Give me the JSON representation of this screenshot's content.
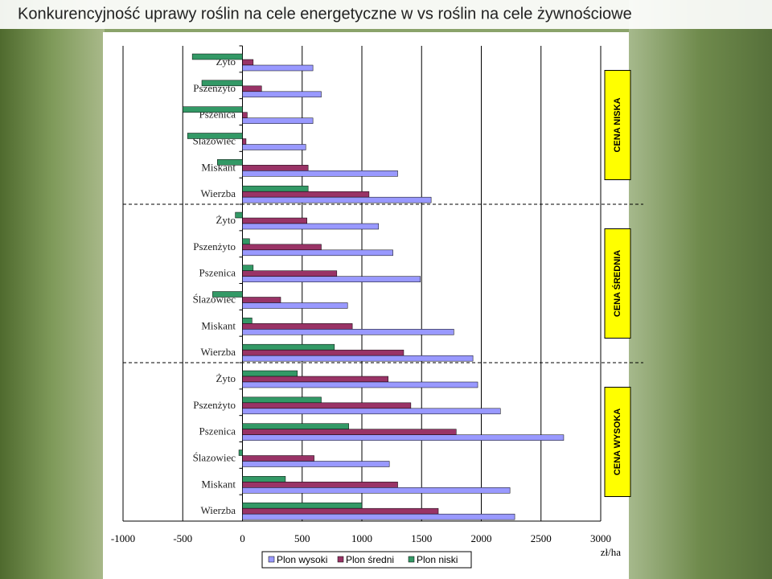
{
  "chart_data": {
    "type": "barh",
    "title": "Konkurencyjność uprawy roślin na cele energetyczne w vs roślin na cele żywnościowe",
    "categories": [
      "Żyto",
      "Pszenżyto",
      "Pszenica",
      "Ślazowiec",
      "Miskant",
      "Wierzba",
      "Żyto",
      "Pszenżyto",
      "Pszenica",
      "Ślazowiec",
      "Miskant",
      "Wierzba",
      "Żyto",
      "Pszenżyto",
      "Pszenica",
      "Ślazowiec",
      "Miskant",
      "Wierzba"
    ],
    "series": [
      {
        "name": "Plon wysoki",
        "color": "#9999ff",
        "values": [
          590,
          660,
          590,
          530,
          1300,
          1580,
          1140,
          1260,
          1490,
          880,
          1770,
          1930,
          1970,
          2160,
          2690,
          1230,
          2240,
          2280
        ]
      },
      {
        "name": "Plon średni",
        "color": "#993366",
        "values": [
          90,
          160,
          40,
          30,
          550,
          1060,
          540,
          660,
          790,
          320,
          920,
          1350,
          1220,
          1410,
          1790,
          600,
          1300,
          1640
        ]
      },
      {
        "name": "Plon niski",
        "color": "#339966",
        "values": [
          -420,
          -340,
          -500,
          -460,
          -210,
          550,
          -60,
          60,
          90,
          -250,
          80,
          770,
          460,
          660,
          890,
          -30,
          360,
          1000
        ]
      }
    ],
    "group_labels": [
      "CENA NISKA",
      "CENA ŚREDNIA",
      "CENA WYSOKA"
    ],
    "x_label": "zł/ha",
    "xlim": [
      -1000,
      3000
    ],
    "xticks": [
      -1000,
      -500,
      0,
      500,
      1000,
      1500,
      2000,
      2500,
      3000
    ],
    "grid": true
  }
}
